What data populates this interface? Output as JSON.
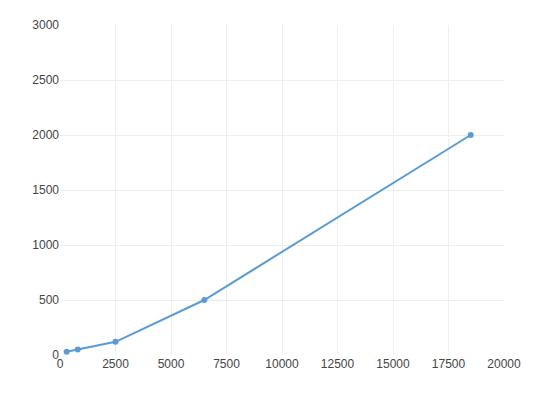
{
  "chart_data": {
    "type": "line",
    "x": [
      300,
      800,
      2500,
      6500,
      18500
    ],
    "values": [
      30,
      50,
      120,
      500,
      2000
    ],
    "color": "#5b9bd5",
    "marker": "circle",
    "xlim": [
      0,
      20000
    ],
    "ylim": [
      0,
      3000
    ],
    "xticks": [
      0,
      2500,
      5000,
      7500,
      10000,
      12500,
      15000,
      17500,
      20000
    ],
    "yticks": [
      0,
      500,
      1000,
      1500,
      2000,
      2500,
      3000
    ],
    "grid": true
  }
}
